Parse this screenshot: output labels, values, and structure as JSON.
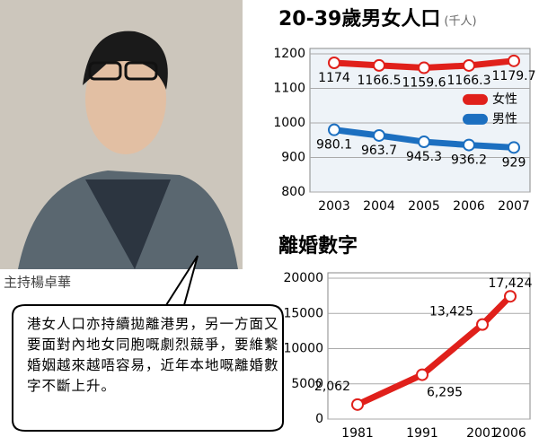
{
  "caption": "主持楊卓華",
  "speech": "港女人口亦持續拋離港男，另一方面又要面對內地女同胞嘅劇烈競爭，要維繫婚姻越來越唔容易，近年本地嘅離婚數字不斷上升。",
  "chart_data": [
    {
      "type": "line",
      "title": "20-39歲男女人口",
      "subtitle": "(千人)",
      "categories": [
        "2003",
        "2004",
        "2005",
        "2006",
        "2007"
      ],
      "series": [
        {
          "name": "女性",
          "color": "#e0201b",
          "values": [
            1174,
            1166.5,
            1159.6,
            1166.3,
            1179.7
          ]
        },
        {
          "name": "男性",
          "color": "#1c6fc0",
          "values": [
            980.1,
            963.7,
            945.3,
            936.2,
            929
          ]
        }
      ],
      "ylim": [
        800,
        1200
      ],
      "yticks": [
        800,
        900,
        1000,
        1100,
        1200
      ],
      "grid": true,
      "legend": "right"
    },
    {
      "type": "line",
      "title": "離婚數字",
      "categories": [
        "1981",
        "1991",
        "2001",
        "2006"
      ],
      "series": [
        {
          "color": "#e0201b",
          "values": [
            2062,
            6295,
            13425,
            17424
          ],
          "value_labels": [
            "2,062",
            "6,295",
            "13,425",
            "17,424"
          ]
        }
      ],
      "ylim": [
        0,
        20000
      ],
      "yticks": [
        0,
        5000,
        10000,
        15000,
        20000
      ],
      "grid": true
    }
  ]
}
